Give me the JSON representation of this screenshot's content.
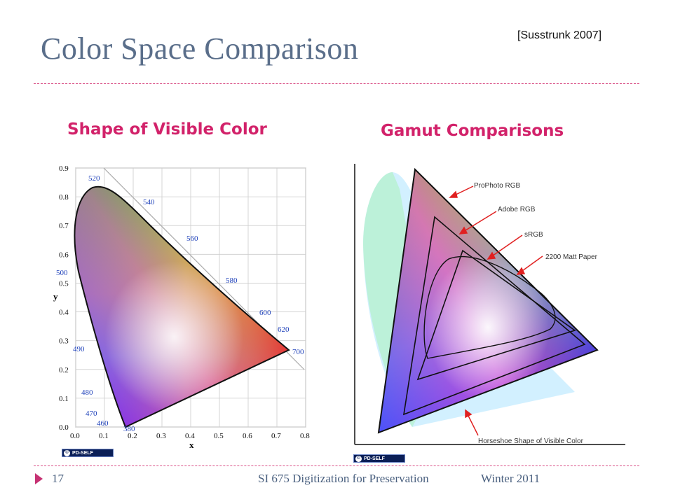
{
  "slide": {
    "title": "Color Space Comparison",
    "citation": "[Susstrunk 2007]",
    "left_heading": "Shape of Visible Color",
    "right_heading": "Gamut Comparisons",
    "footer": {
      "page": "17",
      "course": "SI 675 Digitization for Preservation",
      "term": "Winter 2011"
    }
  },
  "chromaticity": {
    "y_ticks": [
      "0.0",
      "0.1",
      "0.2",
      "0.3",
      "0.4",
      "0.5",
      "0.6",
      "0.7",
      "0.8",
      "0.9"
    ],
    "x_ticks": [
      "0.0",
      "0.1",
      "0.2",
      "0.3",
      "0.4",
      "0.5",
      "0.6",
      "0.7",
      "0.8"
    ],
    "x_label": "x",
    "y_label": "y",
    "wavelengths": [
      "380",
      "460",
      "470",
      "480",
      "490",
      "500",
      "520",
      "540",
      "560",
      "580",
      "600",
      "620",
      "700"
    ],
    "badge": "PD-SELF"
  },
  "gamut": {
    "labels": [
      "ProPhoto RGB",
      "Adobe RGB",
      "sRGB",
      "2200 Matt Paper",
      "Horseshoe Shape of Visible Color"
    ],
    "badge": "PD-SELF"
  }
}
